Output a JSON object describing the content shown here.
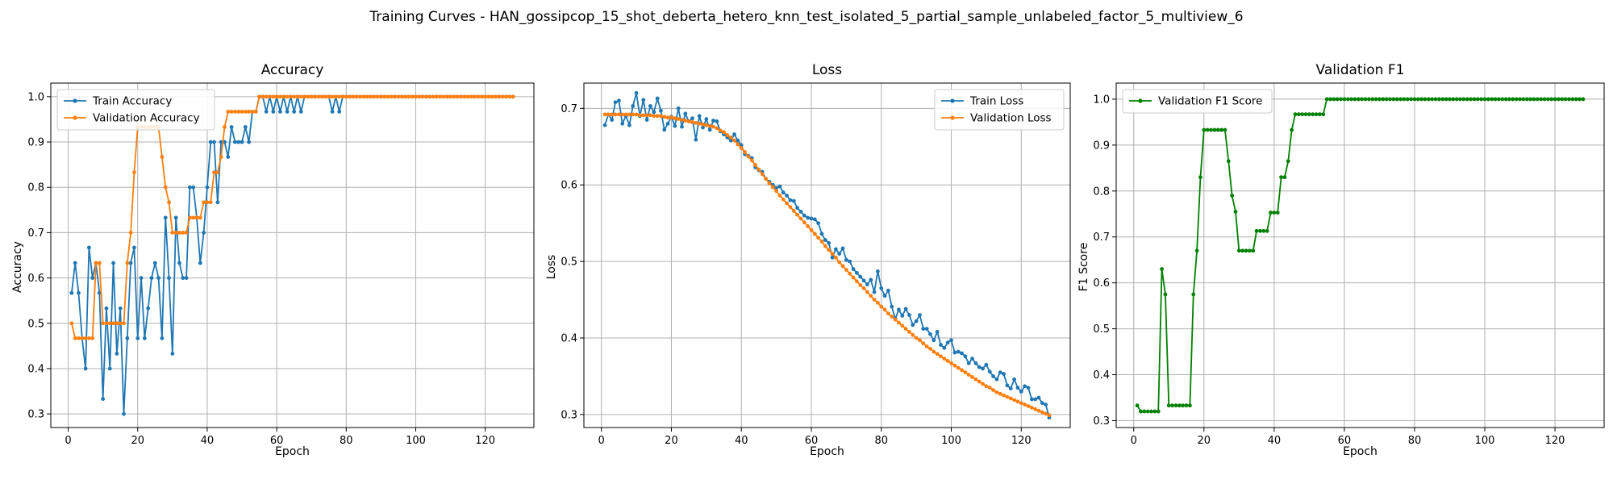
{
  "figure": {
    "suptitle": "Training Curves - HAN_gossipcop_15_shot_deberta_hetero_knn_test_isolated_5_partial_sample_unlabeled_factor_5_multiview_6"
  },
  "colors": {
    "train": "#1f77b4",
    "val": "#ff7f0e",
    "f1": "#008000",
    "grid": "#b0b0b0"
  },
  "chart_data": [
    {
      "type": "line",
      "title": "Accuracy",
      "xlabel": "Epoch",
      "ylabel": "Accuracy",
      "xlim": [
        -5,
        134
      ],
      "ylim": [
        0.27,
        1.03
      ],
      "xticks": [
        0,
        20,
        40,
        60,
        80,
        100,
        120
      ],
      "yticks": [
        0.3,
        0.4,
        0.5,
        0.6,
        0.7,
        0.8,
        0.9,
        1.0
      ],
      "ytick_labels": [
        "0.3",
        "0.4",
        "0.5",
        "0.6",
        "0.7",
        "0.8",
        "0.9",
        "1.0"
      ],
      "grid": true,
      "legend": "upper-left",
      "series": [
        {
          "name": "Train Accuracy",
          "color": "#1f77b4",
          "length": 128,
          "values": [
            0.567,
            0.633,
            0.567,
            0.467,
            0.4,
            0.667,
            0.6,
            0.633,
            0.567,
            0.333,
            0.533,
            0.4,
            0.633,
            0.433,
            0.533,
            0.3,
            0.467,
            0.633,
            0.667,
            0.467,
            0.6,
            0.467,
            0.533,
            0.6,
            0.633,
            0.6,
            0.467,
            0.733,
            0.6,
            0.433,
            0.733,
            0.633,
            0.6,
            0.6,
            0.8,
            0.8,
            0.733,
            0.633,
            0.7,
            0.8,
            0.9,
            0.9,
            0.767,
            0.9,
            0.9,
            0.867,
            0.933,
            0.9,
            0.9,
            0.9,
            0.933,
            0.9,
            0.967,
            0.967,
            1.0,
            1.0,
            0.967,
            1.0,
            0.967,
            1.0,
            0.967,
            1.0,
            0.967,
            1.0,
            0.967,
            1.0,
            0.967,
            1.0,
            1.0,
            1.0,
            1.0,
            1.0,
            1.0,
            1.0,
            1.0,
            0.967,
            1.0,
            0.967,
            1.0,
            1.0,
            1.0,
            1.0,
            1.0,
            1.0,
            1.0,
            1.0,
            1.0,
            1.0,
            1.0,
            1.0,
            1.0,
            1.0,
            1.0,
            1.0,
            1.0,
            1.0,
            1.0,
            1.0,
            1.0,
            1.0,
            1.0,
            1.0,
            1.0,
            1.0,
            1.0,
            1.0,
            1.0,
            1.0,
            1.0,
            1.0,
            1.0,
            1.0,
            1.0,
            1.0,
            1.0,
            1.0,
            1.0,
            1.0,
            1.0,
            1.0,
            1.0,
            1.0,
            1.0,
            1.0,
            1.0,
            1.0,
            1.0,
            1.0
          ]
        },
        {
          "name": "Validation Accuracy",
          "color": "#ff7f0e",
          "length": 128,
          "values": [
            0.5,
            0.467,
            0.467,
            0.467,
            0.467,
            0.467,
            0.467,
            0.633,
            0.633,
            0.5,
            0.5,
            0.5,
            0.5,
            0.5,
            0.5,
            0.5,
            0.633,
            0.7,
            0.833,
            0.933,
            0.933,
            0.933,
            0.933,
            0.933,
            0.933,
            0.933,
            0.867,
            0.8,
            0.767,
            0.7,
            0.7,
            0.7,
            0.7,
            0.7,
            0.733,
            0.733,
            0.733,
            0.733,
            0.767,
            0.767,
            0.767,
            0.833,
            0.833,
            0.867,
            0.933,
            0.967,
            0.967,
            0.967,
            0.967,
            0.967,
            0.967,
            0.967,
            0.967,
            0.967,
            1.0,
            1.0,
            1.0,
            1.0,
            1.0,
            1.0,
            1.0,
            1.0,
            1.0,
            1.0,
            1.0,
            1.0,
            1.0,
            1.0,
            1.0,
            1.0,
            1.0,
            1.0,
            1.0,
            1.0,
            1.0,
            1.0,
            1.0,
            1.0,
            1.0,
            1.0,
            1.0,
            1.0,
            1.0,
            1.0,
            1.0,
            1.0,
            1.0,
            1.0,
            1.0,
            1.0,
            1.0,
            1.0,
            1.0,
            1.0,
            1.0,
            1.0,
            1.0,
            1.0,
            1.0,
            1.0,
            1.0,
            1.0,
            1.0,
            1.0,
            1.0,
            1.0,
            1.0,
            1.0,
            1.0,
            1.0,
            1.0,
            1.0,
            1.0,
            1.0,
            1.0,
            1.0,
            1.0,
            1.0,
            1.0,
            1.0,
            1.0,
            1.0,
            1.0,
            1.0,
            1.0,
            1.0,
            1.0,
            1.0
          ]
        }
      ]
    },
    {
      "type": "line",
      "title": "Loss",
      "xlabel": "Epoch",
      "ylabel": "Loss",
      "xlim": [
        -5,
        134
      ],
      "ylim": [
        0.283,
        0.733
      ],
      "xticks": [
        0,
        20,
        40,
        60,
        80,
        100,
        120
      ],
      "yticks": [
        0.3,
        0.4,
        0.5,
        0.6,
        0.7
      ],
      "ytick_labels": [
        "0.3",
        "0.4",
        "0.5",
        "0.6",
        "0.7"
      ],
      "grid": true,
      "legend": "upper-right",
      "series": [
        {
          "name": "Train Loss",
          "color": "#1f77b4",
          "length": 128,
          "values": [
            0.678,
            0.692,
            0.685,
            0.708,
            0.71,
            0.68,
            0.69,
            0.678,
            0.703,
            0.72,
            0.69,
            0.711,
            0.685,
            0.703,
            0.695,
            0.713,
            0.697,
            0.672,
            0.68,
            0.689,
            0.677,
            0.7,
            0.676,
            0.693,
            0.683,
            0.687,
            0.659,
            0.69,
            0.675,
            0.686,
            0.672,
            0.684,
            0.683,
            0.67,
            0.666,
            0.662,
            0.658,
            0.666,
            0.658,
            0.652,
            0.64,
            0.638,
            0.635,
            0.623,
            0.619,
            0.617,
            0.608,
            0.604,
            0.6,
            0.596,
            0.598,
            0.59,
            0.586,
            0.58,
            0.579,
            0.57,
            0.565,
            0.56,
            0.557,
            0.556,
            0.555,
            0.55,
            0.536,
            0.528,
            0.524,
            0.505,
            0.516,
            0.51,
            0.517,
            0.502,
            0.5,
            0.49,
            0.485,
            0.48,
            0.475,
            0.47,
            0.476,
            0.46,
            0.487,
            0.465,
            0.455,
            0.462,
            0.441,
            0.425,
            0.437,
            0.429,
            0.438,
            0.43,
            0.417,
            0.422,
            0.43,
            0.412,
            0.412,
            0.405,
            0.397,
            0.408,
            0.391,
            0.387,
            0.394,
            0.397,
            0.381,
            0.382,
            0.38,
            0.376,
            0.367,
            0.373,
            0.367,
            0.362,
            0.36,
            0.365,
            0.356,
            0.35,
            0.346,
            0.355,
            0.353,
            0.338,
            0.334,
            0.346,
            0.335,
            0.33,
            0.337,
            0.335,
            0.32,
            0.32,
            0.322,
            0.315,
            0.313,
            0.296
          ]
        },
        {
          "name": "Validation Loss",
          "color": "#ff7f0e",
          "length": 128,
          "values": [
            0.692,
            0.692,
            0.692,
            0.692,
            0.692,
            0.692,
            0.692,
            0.692,
            0.692,
            0.692,
            0.691,
            0.691,
            0.691,
            0.691,
            0.69,
            0.69,
            0.69,
            0.689,
            0.688,
            0.688,
            0.687,
            0.686,
            0.685,
            0.684,
            0.683,
            0.682,
            0.681,
            0.68,
            0.679,
            0.678,
            0.677,
            0.676,
            0.674,
            0.671,
            0.669,
            0.665,
            0.662,
            0.658,
            0.653,
            0.648,
            0.643,
            0.637,
            0.632,
            0.626,
            0.62,
            0.614,
            0.608,
            0.602,
            0.597,
            0.592,
            0.586,
            0.581,
            0.576,
            0.571,
            0.566,
            0.561,
            0.556,
            0.551,
            0.546,
            0.541,
            0.536,
            0.531,
            0.526,
            0.52,
            0.515,
            0.51,
            0.505,
            0.499,
            0.494,
            0.489,
            0.484,
            0.479,
            0.474,
            0.469,
            0.465,
            0.46,
            0.455,
            0.45,
            0.446,
            0.441,
            0.437,
            0.432,
            0.428,
            0.424,
            0.42,
            0.416,
            0.412,
            0.408,
            0.404,
            0.4,
            0.397,
            0.393,
            0.389,
            0.386,
            0.382,
            0.379,
            0.376,
            0.373,
            0.37,
            0.367,
            0.364,
            0.361,
            0.358,
            0.355,
            0.352,
            0.349,
            0.346,
            0.343,
            0.34,
            0.337,
            0.335,
            0.332,
            0.329,
            0.327,
            0.325,
            0.323,
            0.321,
            0.319,
            0.317,
            0.315,
            0.313,
            0.311,
            0.309,
            0.307,
            0.305,
            0.303,
            0.301,
            0.299
          ]
        }
      ]
    },
    {
      "type": "line",
      "title": "Validation F1",
      "xlabel": "Epoch",
      "ylabel": "F1 Score",
      "xlim": [
        -5,
        134
      ],
      "ylim": [
        0.285,
        1.035
      ],
      "xticks": [
        0,
        20,
        40,
        60,
        80,
        100,
        120
      ],
      "yticks": [
        0.3,
        0.4,
        0.5,
        0.6,
        0.7,
        0.8,
        0.9,
        1.0
      ],
      "ytick_labels": [
        "0.3",
        "0.4",
        "0.5",
        "0.6",
        "0.7",
        "0.8",
        "0.9",
        "1.0"
      ],
      "grid": true,
      "legend": "upper-left",
      "series": [
        {
          "name": "Validation F1 Score",
          "color": "#008000",
          "length": 128,
          "values": [
            0.333,
            0.32,
            0.32,
            0.32,
            0.32,
            0.32,
            0.32,
            0.63,
            0.575,
            0.333,
            0.333,
            0.333,
            0.333,
            0.333,
            0.333,
            0.333,
            0.575,
            0.67,
            0.83,
            0.933,
            0.933,
            0.933,
            0.933,
            0.933,
            0.933,
            0.933,
            0.865,
            0.79,
            0.755,
            0.67,
            0.67,
            0.67,
            0.67,
            0.67,
            0.713,
            0.713,
            0.713,
            0.713,
            0.753,
            0.753,
            0.753,
            0.83,
            0.83,
            0.865,
            0.933,
            0.967,
            0.967,
            0.967,
            0.967,
            0.967,
            0.967,
            0.967,
            0.967,
            0.967,
            1.0,
            1.0,
            1.0,
            1.0,
            1.0,
            1.0,
            1.0,
            1.0,
            1.0,
            1.0,
            1.0,
            1.0,
            1.0,
            1.0,
            1.0,
            1.0,
            1.0,
            1.0,
            1.0,
            1.0,
            1.0,
            1.0,
            1.0,
            1.0,
            1.0,
            1.0,
            1.0,
            1.0,
            1.0,
            1.0,
            1.0,
            1.0,
            1.0,
            1.0,
            1.0,
            1.0,
            1.0,
            1.0,
            1.0,
            1.0,
            1.0,
            1.0,
            1.0,
            1.0,
            1.0,
            1.0,
            1.0,
            1.0,
            1.0,
            1.0,
            1.0,
            1.0,
            1.0,
            1.0,
            1.0,
            1.0,
            1.0,
            1.0,
            1.0,
            1.0,
            1.0,
            1.0,
            1.0,
            1.0,
            1.0,
            1.0,
            1.0,
            1.0,
            1.0,
            1.0,
            1.0,
            1.0,
            1.0,
            1.0
          ]
        }
      ]
    }
  ]
}
